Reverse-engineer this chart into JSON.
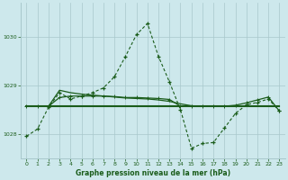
{
  "title": "Graphe pression niveau de la mer (hPa)",
  "background_color": "#cde8ec",
  "grid_color": "#a8c8cc",
  "line_color": "#1a5c1a",
  "xlim": [
    -0.5,
    23.5
  ],
  "ylim": [
    1027.5,
    1030.7
  ],
  "yticks": [
    1028,
    1029,
    1030
  ],
  "xticks": [
    0,
    1,
    2,
    3,
    4,
    5,
    6,
    7,
    8,
    9,
    10,
    11,
    12,
    13,
    14,
    15,
    16,
    17,
    18,
    19,
    20,
    21,
    22,
    23
  ],
  "line1_x": [
    0,
    1,
    2,
    3,
    4,
    5,
    6,
    7,
    8,
    9,
    10,
    11,
    12,
    13,
    14,
    15,
    16,
    17,
    18,
    19,
    20,
    21,
    22,
    23
  ],
  "line1_y": [
    1027.95,
    1028.1,
    1028.55,
    1028.85,
    1028.72,
    1028.78,
    1028.85,
    1028.95,
    1029.18,
    1029.6,
    1030.05,
    1030.28,
    1029.6,
    1029.07,
    1028.5,
    1027.7,
    1027.8,
    1027.82,
    1028.12,
    1028.42,
    1028.6,
    1028.65,
    1028.72,
    1028.47
  ],
  "line2_x": [
    0,
    1,
    2,
    3,
    4,
    5,
    6,
    7,
    8,
    9,
    10,
    11,
    12,
    13,
    14,
    15,
    16,
    17,
    18,
    19,
    20,
    21,
    22,
    23
  ],
  "line2_y": [
    1028.57,
    1028.57,
    1028.57,
    1028.9,
    1028.85,
    1028.82,
    1028.8,
    1028.78,
    1028.76,
    1028.74,
    1028.73,
    1028.72,
    1028.7,
    1028.67,
    1028.62,
    1028.58,
    1028.57,
    1028.57,
    1028.57,
    1028.57,
    1028.57,
    1028.57,
    1028.57,
    1028.57
  ],
  "line3_x": [
    0,
    1,
    2,
    3,
    4,
    5,
    6,
    7,
    8,
    9,
    10,
    11,
    12,
    13,
    14,
    15,
    16,
    17,
    18,
    19,
    20,
    21,
    22,
    23
  ],
  "line3_y": [
    1028.57,
    1028.57,
    1028.57,
    1028.75,
    1028.78,
    1028.78,
    1028.78,
    1028.78,
    1028.77,
    1028.75,
    1028.75,
    1028.74,
    1028.73,
    1028.71,
    1028.57,
    1028.57,
    1028.57,
    1028.57,
    1028.57,
    1028.59,
    1028.64,
    1028.7,
    1028.76,
    1028.47
  ],
  "line4_x": [
    0,
    1,
    2,
    3,
    4,
    5,
    6,
    7,
    8,
    9,
    10,
    11,
    12,
    13,
    14,
    15,
    16,
    17,
    18,
    19,
    20,
    21,
    22,
    23
  ],
  "line4_y": [
    1028.57,
    1028.57,
    1028.57,
    1028.57,
    1028.57,
    1028.57,
    1028.57,
    1028.57,
    1028.57,
    1028.57,
    1028.57,
    1028.57,
    1028.57,
    1028.57,
    1028.57,
    1028.57,
    1028.57,
    1028.57,
    1028.57,
    1028.57,
    1028.57,
    1028.57,
    1028.57,
    1028.57
  ]
}
